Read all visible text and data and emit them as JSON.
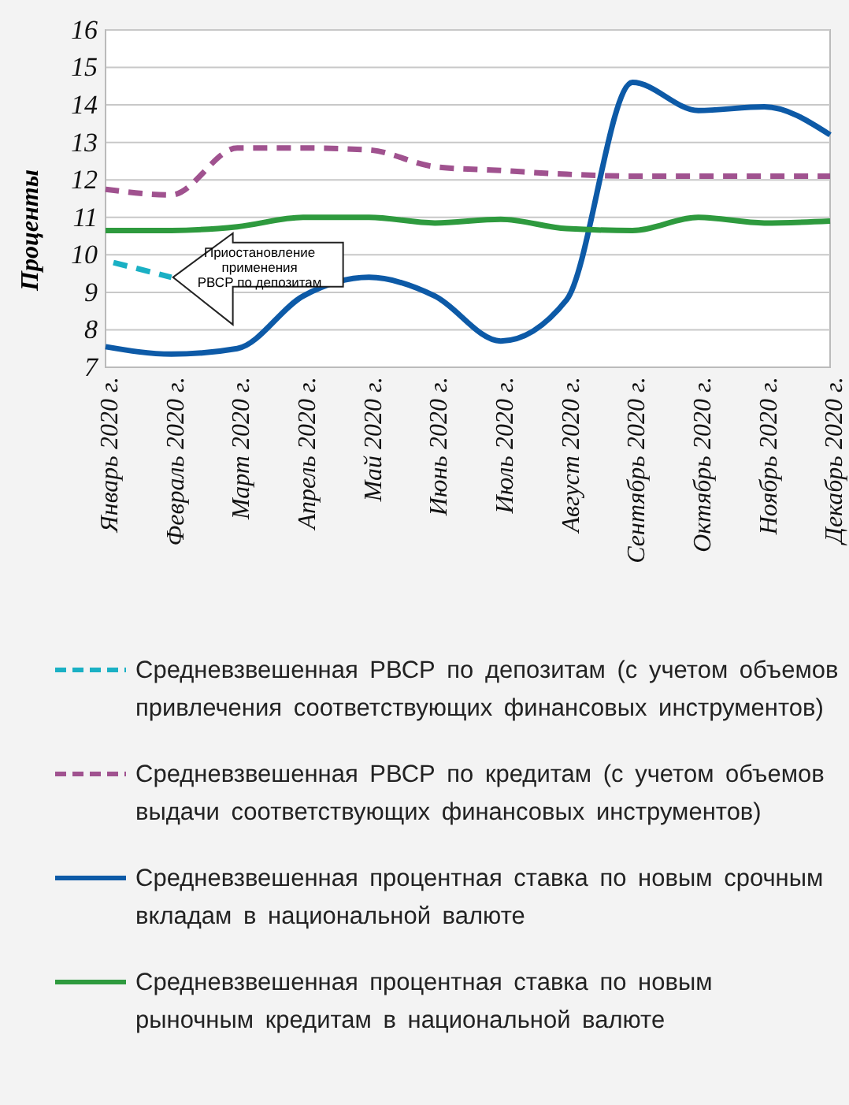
{
  "chart_data": {
    "type": "line",
    "ylabel": "Проценты",
    "categories": [
      "Январь 2020 г.",
      "Февраль 2020 г.",
      "Март 2020 г.",
      "Апрель 2020 г.",
      "Май 2020 г.",
      "Июнь 2020 г.",
      "Июль 2020 г.",
      "Август 2020 г.",
      "Сентябрь 2020 г.",
      "Октябрь 2020 г.",
      "Ноябрь 2020 г.",
      "Декабрь 2020 г."
    ],
    "ylim": [
      7,
      16
    ],
    "yticks": [
      7,
      8,
      9,
      10,
      11,
      12,
      13,
      14,
      15,
      16
    ],
    "grid": "y",
    "legend": "bottom",
    "marker": "none",
    "annotations": [
      {
        "text": "Приостановление применения РВСР по депозитам",
        "x": "Февраль 2020 г.",
        "y": 9.4
      }
    ],
    "series": [
      {
        "name": "Средневзвешенная РВСР по депозитам (с учетом объемов привлечения соответствующих финансовых инструментов)",
        "color": "#1ab0c4",
        "line_style": "dashed",
        "values": [
          9.85,
          9.4,
          null,
          null,
          null,
          null,
          null,
          null,
          null,
          null,
          null,
          null
        ]
      },
      {
        "name": "Средневзвешенная РВСР по кредитам (с учетом объемов выдачи соответствующих финансовых инструментов)",
        "color": "#a0528f",
        "line_style": "dashed",
        "values": [
          11.75,
          11.6,
          12.85,
          12.85,
          12.8,
          12.35,
          12.25,
          12.15,
          12.1,
          12.1,
          12.1,
          12.1
        ]
      },
      {
        "name": "Средневзвешенная процентная ставка по новым срочным вкладам в национальной валюте",
        "color": "#0d5aa7",
        "line_style": "solid",
        "values": [
          7.55,
          7.35,
          7.5,
          8.9,
          9.4,
          8.9,
          7.7,
          8.8,
          14.6,
          13.85,
          13.95,
          13.2
        ]
      },
      {
        "name": "Средневзвешенная процентная ставка по новым рыночным кредитам в национальной валюте",
        "color": "#2e9a3e",
        "line_style": "solid",
        "values": [
          10.65,
          10.65,
          10.75,
          11.0,
          11.0,
          10.85,
          10.95,
          10.7,
          10.65,
          11.0,
          10.85,
          10.9
        ]
      }
    ]
  }
}
